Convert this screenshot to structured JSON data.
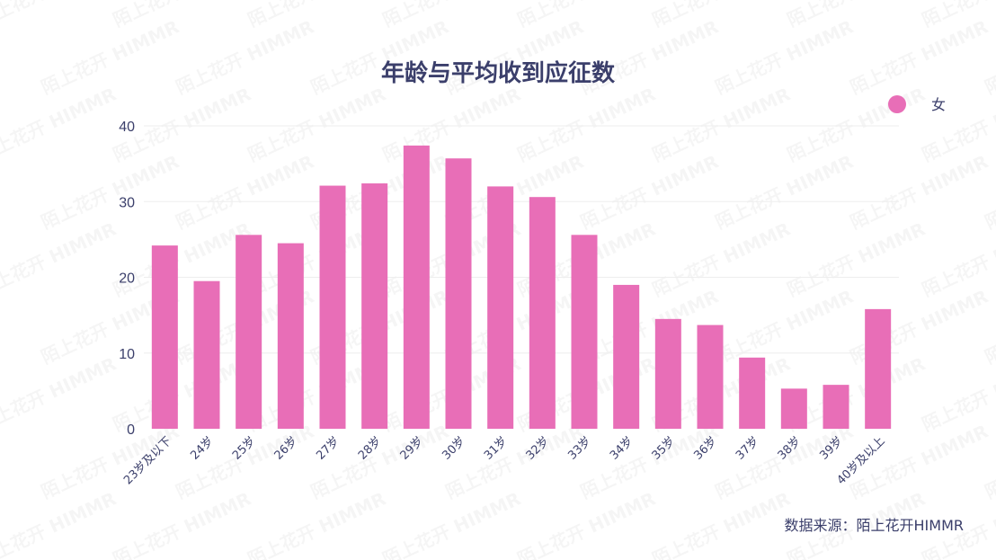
{
  "chart_data": {
    "type": "bar",
    "title": "年龄与平均收到应征数",
    "categories": [
      "23岁及以下",
      "24岁",
      "25岁",
      "26岁",
      "27岁",
      "28岁",
      "29岁",
      "30岁",
      "31岁",
      "32岁",
      "33岁",
      "34岁",
      "35岁",
      "36岁",
      "37岁",
      "38岁",
      "39岁",
      "40岁及以上"
    ],
    "series": [
      {
        "name": "女",
        "color": "#e86eb7",
        "values": [
          24.2,
          19.5,
          25.6,
          24.5,
          32.1,
          32.4,
          37.4,
          35.7,
          32.0,
          30.6,
          25.6,
          19.0,
          14.5,
          13.7,
          9.4,
          5.3,
          5.8,
          15.8
        ]
      }
    ],
    "ylim": [
      0,
      40
    ],
    "yticks": [
      0,
      10,
      20,
      30,
      40
    ],
    "grid": true,
    "legend_position": "top-right",
    "source": "数据来源：陌上花开HIMMR"
  },
  "watermark_text": "陌上花开 HIMMR",
  "colors": {
    "text": "#3b3f6b",
    "bar": "#e86eb7",
    "grid": "#eeeeee"
  }
}
